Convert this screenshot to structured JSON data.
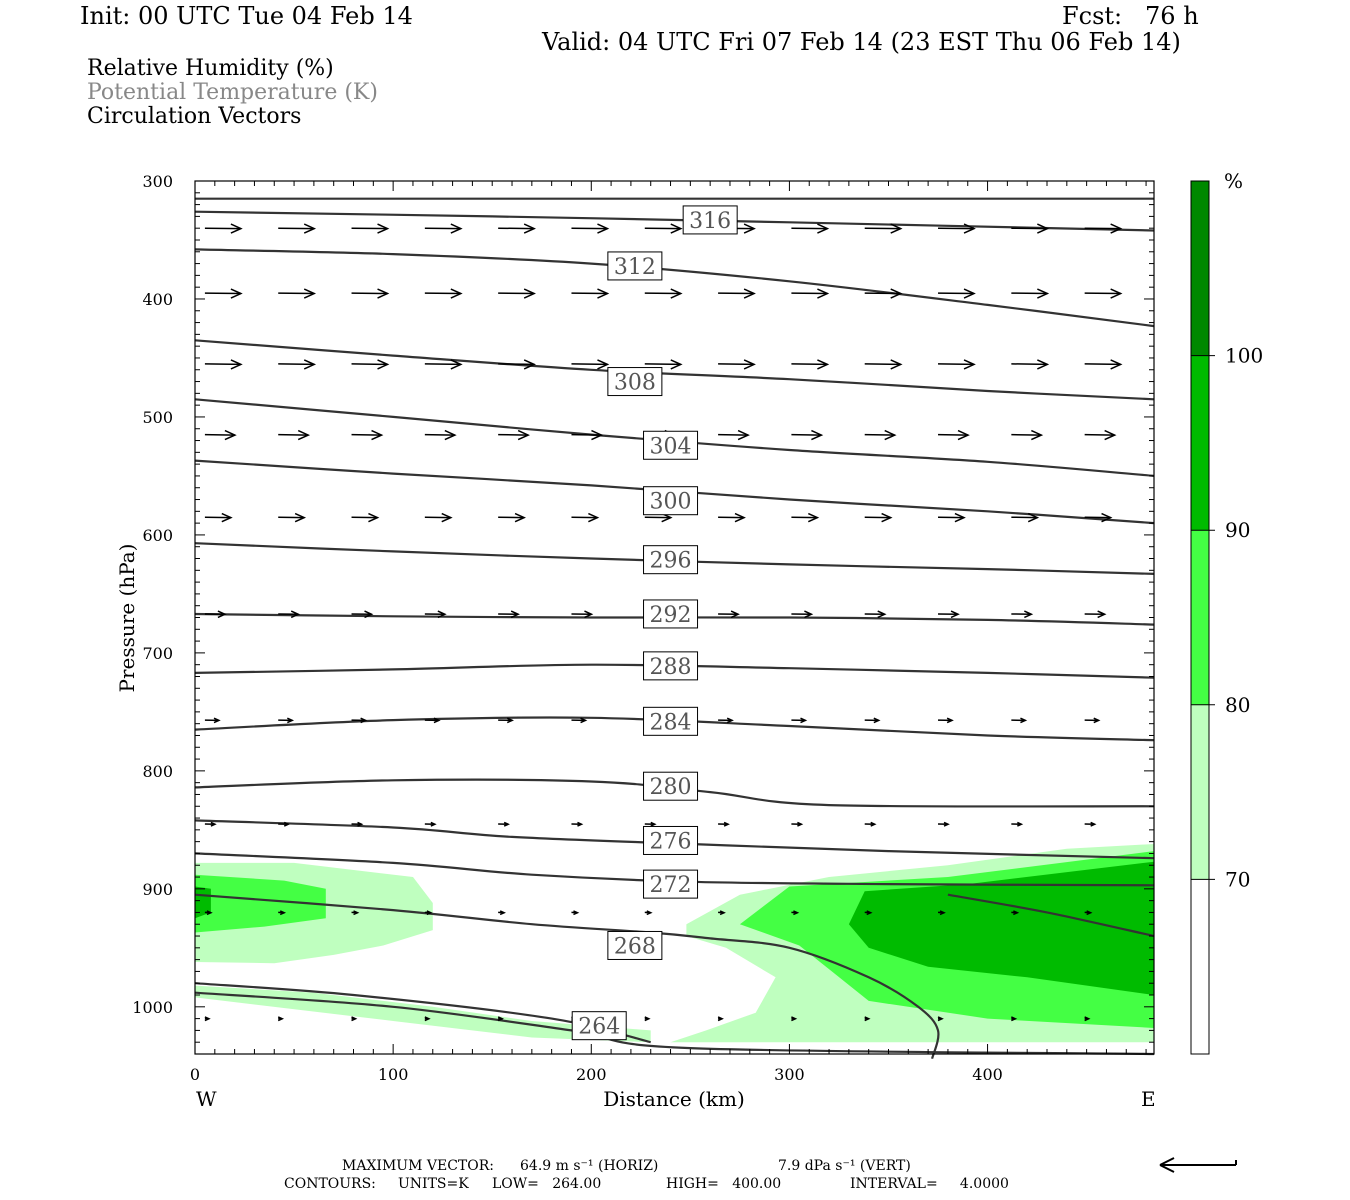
{
  "header": {
    "init": "Init: 00 UTC Tue 04 Feb 14",
    "fcst": "Fcst:   76 h",
    "valid": "Valid: 04 UTC Fri 07 Feb 14 (23 EST Thu 06 Feb 14)"
  },
  "legend": {
    "rh": "Relative Humidity (%)",
    "theta": "Potential Temperature (K)",
    "vectors": "Circulation Vectors"
  },
  "footer": {
    "max_vector_label": "MAXIMUM VECTOR:",
    "max_horiz": "64.9 m s⁻¹ (HORIZ)",
    "max_vert": "7.9 dPa s⁻¹ (VERT)",
    "contours_label": "CONTOURS:",
    "units": "UNITS=K",
    "low": "LOW=   264.00",
    "high": "HIGH=   400.00",
    "interval": "INTERVAL=     4.0000"
  },
  "chart_data": {
    "type": "cross-section",
    "xlabel": "Distance (km)",
    "ylabel": "Pressure (hPa)",
    "xlim": [
      0,
      484
    ],
    "ylim": [
      300,
      1040
    ],
    "x_ticks": [
      0,
      100,
      200,
      300,
      400
    ],
    "y_ticks": [
      300,
      400,
      500,
      600,
      700,
      800,
      900,
      1000
    ],
    "x_end_labels": {
      "left": "W",
      "right": "E"
    },
    "colorbar": {
      "unit": "%",
      "levels": [
        70,
        80,
        90,
        100
      ],
      "colors": [
        "#ffffff",
        "#bfffbf",
        "#44ff44",
        "#00bb00",
        "#008800"
      ]
    },
    "rh_shading": [
      {
        "level": 70,
        "color": "#bfffbf",
        "polygons": [
          [
            [
              0,
              878
            ],
            [
              50,
              878
            ],
            [
              110,
              890
            ],
            [
              120,
              912
            ],
            [
              120,
              935
            ],
            [
              95,
              948
            ],
            [
              70,
              956
            ],
            [
              40,
              963
            ],
            [
              0,
              962
            ]
          ],
          [
            [
              0,
              982
            ],
            [
              60,
              988
            ],
            [
              120,
              1000
            ],
            [
              170,
              1012
            ],
            [
              230,
              1020
            ],
            [
              230,
              1030
            ],
            [
              170,
              1026
            ],
            [
              100,
              1012
            ],
            [
              30,
              998
            ],
            [
              0,
              992
            ]
          ],
          [
            [
              248,
              930
            ],
            [
              275,
              905
            ],
            [
              320,
              890
            ],
            [
              380,
              880
            ],
            [
              440,
              866
            ],
            [
              484,
              862
            ],
            [
              484,
              1030
            ],
            [
              420,
              1030
            ],
            [
              320,
              1030
            ],
            [
              240,
              1030
            ],
            [
              258,
              1020
            ],
            [
              283,
              1005
            ],
            [
              293,
              975
            ],
            [
              268,
              950
            ],
            [
              248,
              940
            ]
          ]
        ]
      },
      {
        "level": 80,
        "color": "#44ff44",
        "polygons": [
          [
            [
              0,
              888
            ],
            [
              45,
              893
            ],
            [
              66,
              900
            ],
            [
              66,
              925
            ],
            [
              35,
              932
            ],
            [
              0,
              937
            ]
          ],
          [
            [
              275,
              930
            ],
            [
              300,
              898
            ],
            [
              380,
              890
            ],
            [
              484,
              868
            ],
            [
              484,
              1018
            ],
            [
              400,
              1010
            ],
            [
              340,
              995
            ],
            [
              320,
              968
            ],
            [
              305,
              948
            ]
          ]
        ]
      },
      {
        "level": 90,
        "color": "#00bb00",
        "polygons": [
          [
            [
              0,
              898
            ],
            [
              8,
              900
            ],
            [
              8,
              920
            ],
            [
              0,
              925
            ]
          ],
          [
            [
              330,
              930
            ],
            [
              338,
              902
            ],
            [
              390,
              896
            ],
            [
              484,
              877
            ],
            [
              484,
              990
            ],
            [
              420,
              975
            ],
            [
              370,
              966
            ],
            [
              340,
              950
            ]
          ]
        ]
      }
    ],
    "theta_contours": [
      {
        "value": 316,
        "pts": [
          [
            0,
            326
          ],
          [
            150,
            330
          ],
          [
            300,
            335
          ],
          [
            484,
            342
          ]
        ]
      },
      {
        "value": 312,
        "pts": [
          [
            0,
            358
          ],
          [
            100,
            362
          ],
          [
            200,
            370
          ],
          [
            300,
            385
          ],
          [
            400,
            405
          ],
          [
            484,
            423
          ]
        ]
      },
      {
        "value": 308,
        "pts": [
          [
            0,
            435
          ],
          [
            100,
            448
          ],
          [
            200,
            460
          ],
          [
            300,
            468
          ],
          [
            400,
            478
          ],
          [
            484,
            485
          ]
        ]
      },
      {
        "value": 304,
        "pts": [
          [
            0,
            485
          ],
          [
            100,
            500
          ],
          [
            200,
            515
          ],
          [
            300,
            528
          ],
          [
            400,
            538
          ],
          [
            484,
            550
          ]
        ]
      },
      {
        "value": 300,
        "pts": [
          [
            0,
            537
          ],
          [
            100,
            548
          ],
          [
            200,
            558
          ],
          [
            300,
            570
          ],
          [
            400,
            580
          ],
          [
            484,
            590
          ]
        ]
      },
      {
        "value": 296,
        "pts": [
          [
            0,
            607
          ],
          [
            100,
            614
          ],
          [
            200,
            620
          ],
          [
            300,
            625
          ],
          [
            400,
            629
          ],
          [
            484,
            633
          ]
        ]
      },
      {
        "value": 292,
        "pts": [
          [
            0,
            667
          ],
          [
            100,
            669
          ],
          [
            200,
            670
          ],
          [
            300,
            670
          ],
          [
            400,
            672
          ],
          [
            484,
            676
          ]
        ]
      },
      {
        "value": 288,
        "pts": [
          [
            0,
            717
          ],
          [
            100,
            714
          ],
          [
            200,
            710
          ],
          [
            300,
            713
          ],
          [
            400,
            717
          ],
          [
            484,
            721
          ]
        ]
      },
      {
        "value": 284,
        "pts": [
          [
            0,
            765
          ],
          [
            100,
            757
          ],
          [
            200,
            755
          ],
          [
            300,
            762
          ],
          [
            400,
            770
          ],
          [
            484,
            774
          ]
        ]
      },
      {
        "value": 280,
        "pts": [
          [
            0,
            814
          ],
          [
            100,
            808
          ],
          [
            200,
            809
          ],
          [
            260,
            818
          ],
          [
            320,
            829
          ],
          [
            484,
            830
          ]
        ]
      },
      {
        "value": 276,
        "pts": [
          [
            0,
            842
          ],
          [
            100,
            848
          ],
          [
            160,
            856
          ],
          [
            250,
            862
          ],
          [
            350,
            868
          ],
          [
            484,
            874
          ]
        ]
      },
      {
        "value": 272,
        "pts": [
          [
            0,
            870
          ],
          [
            100,
            878
          ],
          [
            170,
            888
          ],
          [
            250,
            894
          ],
          [
            350,
            896
          ],
          [
            484,
            897
          ]
        ]
      },
      {
        "value": 268,
        "pts": [
          [
            0,
            905
          ],
          [
            100,
            918
          ],
          [
            170,
            930
          ],
          [
            230,
            937
          ],
          [
            260,
            942
          ],
          [
            300,
            950
          ],
          [
            340,
            975
          ],
          [
            365,
            1000
          ],
          [
            375,
            1020
          ],
          [
            372,
            1044
          ]
        ]
      },
      {
        "value": 264,
        "pts": [
          [
            0,
            988
          ],
          [
            100,
            1000
          ],
          [
            190,
            1020
          ],
          [
            250,
            1035
          ],
          [
            484,
            1040
          ]
        ]
      },
      {
        "value": null,
        "pts": [
          [
            0,
            980
          ],
          [
            80,
            990
          ],
          [
            180,
            1010
          ],
          [
            230,
            1030
          ]
        ]
      },
      {
        "value": null,
        "pts": [
          [
            380,
            905
          ],
          [
            430,
            920
          ],
          [
            484,
            940
          ]
        ]
      },
      {
        "value": null,
        "pts": [
          [
            0,
            315
          ],
          [
            484,
            315
          ]
        ]
      }
    ],
    "contour_labels": [
      {
        "value": "316",
        "x": 260,
        "p": 333
      },
      {
        "value": "312",
        "x": 222,
        "p": 372
      },
      {
        "value": "308",
        "x": 222,
        "p": 470
      },
      {
        "value": "304",
        "x": 240,
        "p": 524
      },
      {
        "value": "300",
        "x": 240,
        "p": 571
      },
      {
        "value": "296",
        "x": 240,
        "p": 621
      },
      {
        "value": "292",
        "x": 240,
        "p": 667
      },
      {
        "value": "288",
        "x": 240,
        "p": 711
      },
      {
        "value": "284",
        "x": 240,
        "p": 758
      },
      {
        "value": "280",
        "x": 240,
        "p": 813
      },
      {
        "value": "276",
        "x": 240,
        "p": 859
      },
      {
        "value": "272",
        "x": 240,
        "p": 896
      },
      {
        "value": "268",
        "x": 222,
        "p": 948
      },
      {
        "value": "264",
        "x": 204,
        "p": 1016
      }
    ],
    "vector_rows": [
      {
        "p": 340,
        "len": 36,
        "tilt": 0.08
      },
      {
        "p": 395,
        "len": 36,
        "tilt": 0.08
      },
      {
        "p": 455,
        "len": 36,
        "tilt": 0.1
      },
      {
        "p": 515,
        "len": 30,
        "tilt": 0.1
      },
      {
        "p": 585,
        "len": 26,
        "tilt": 0.1
      },
      {
        "p": 667,
        "len": 20,
        "tilt": 0.1
      },
      {
        "p": 757,
        "len": 14,
        "tilt": 0.1
      },
      {
        "p": 845,
        "len": 10,
        "tilt": 0.2
      },
      {
        "p": 920,
        "len": 6,
        "tilt": 0.3
      },
      {
        "p": 1010,
        "len": 4,
        "tilt": 0.3
      }
    ]
  }
}
